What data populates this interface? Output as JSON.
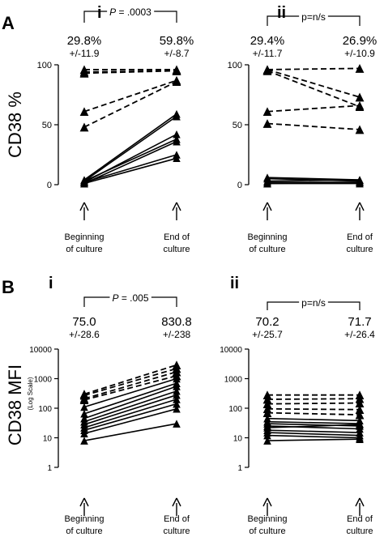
{
  "chart_data": [
    {
      "panel": "A",
      "subpanel": "i",
      "type": "line",
      "scale": "linear",
      "ylabel": "CD38 %",
      "ylim": [
        0,
        100
      ],
      "yticks": [
        "0",
        "50",
        "100"
      ],
      "x_labels": [
        [
          "Beginning",
          "of culture"
        ],
        [
          "End of",
          "culture"
        ]
      ],
      "pvalue": {
        "prefix": "P",
        "text": " = .0003"
      },
      "stats": [
        {
          "mean": "29.8%",
          "sd": "+/-11.9"
        },
        {
          "mean": "59.8%",
          "sd": "+/-8.7"
        }
      ],
      "series": [
        {
          "style": "dashed",
          "values": [
            96,
            96
          ]
        },
        {
          "style": "dashed",
          "values": [
            94,
            95
          ]
        },
        {
          "style": "dashed",
          "values": [
            93,
            95
          ]
        },
        {
          "style": "dashed",
          "values": [
            61,
            87
          ]
        },
        {
          "style": "dashed",
          "values": [
            48,
            86
          ]
        },
        {
          "style": "solid",
          "values": [
            4,
            59
          ]
        },
        {
          "style": "solid",
          "values": [
            3,
            57
          ]
        },
        {
          "style": "solid",
          "values": [
            2,
            42
          ]
        },
        {
          "style": "solid",
          "values": [
            3,
            38
          ]
        },
        {
          "style": "solid",
          "values": [
            1,
            36
          ]
        },
        {
          "style": "solid",
          "values": [
            2,
            25
          ]
        },
        {
          "style": "solid",
          "values": [
            1,
            22
          ]
        }
      ]
    },
    {
      "panel": "A",
      "subpanel": "ii",
      "type": "line",
      "scale": "linear",
      "ylim": [
        0,
        100
      ],
      "yticks": [
        "0",
        "50",
        "100"
      ],
      "x_labels": [
        [
          "Beginning",
          "of culture"
        ],
        [
          "End of",
          "culture"
        ]
      ],
      "pvalue": {
        "prefix": "",
        "text": "p=n/s"
      },
      "stats": [
        {
          "mean": "29.4%",
          "sd": "+/-11.7"
        },
        {
          "mean": "26.9%",
          "sd": "+/-10.9"
        }
      ],
      "series": [
        {
          "style": "dashed",
          "values": [
            96,
            97
          ]
        },
        {
          "style": "dashed",
          "values": [
            96,
            73
          ]
        },
        {
          "style": "dashed",
          "values": [
            95,
            65
          ]
        },
        {
          "style": "dashed",
          "values": [
            61,
            66
          ]
        },
        {
          "style": "dashed",
          "values": [
            51,
            46
          ]
        },
        {
          "style": "solid",
          "values": [
            6,
            4
          ]
        },
        {
          "style": "solid",
          "values": [
            5,
            3
          ]
        },
        {
          "style": "solid",
          "values": [
            3,
            4
          ]
        },
        {
          "style": "solid",
          "values": [
            2,
            2
          ]
        },
        {
          "style": "solid",
          "values": [
            1,
            2
          ]
        },
        {
          "style": "solid",
          "values": [
            1,
            1
          ]
        }
      ]
    },
    {
      "panel": "B",
      "subpanel": "i",
      "type": "line",
      "scale": "log",
      "ylabel": "CD38 MFI",
      "ylabel_sub": "(Log Scale)",
      "ylim": [
        1,
        10000
      ],
      "yticks": [
        "1",
        "10",
        "100",
        "1000",
        "10000"
      ],
      "x_labels": [
        [
          "Beginning",
          "of culture"
        ],
        [
          "End of",
          "culture"
        ]
      ],
      "pvalue": {
        "prefix": "P",
        "text": " = .005"
      },
      "stats": [
        {
          "mean": "75.0",
          "sd": "+/-28.6"
        },
        {
          "mean": "830.8",
          "sd": "+/-238"
        }
      ],
      "series": [
        {
          "style": "dashed",
          "values": [
            300,
            2900
          ]
        },
        {
          "style": "dashed",
          "values": [
            270,
            2200
          ]
        },
        {
          "style": "dashed",
          "values": [
            210,
            1700
          ]
        },
        {
          "style": "dashed",
          "values": [
            190,
            1250
          ]
        },
        {
          "style": "solid",
          "values": [
            110,
            1000
          ]
        },
        {
          "style": "solid",
          "values": [
            65,
            700
          ]
        },
        {
          "style": "solid",
          "values": [
            45,
            550
          ]
        },
        {
          "style": "solid",
          "values": [
            35,
            380
          ]
        },
        {
          "style": "solid",
          "values": [
            28,
            280
          ]
        },
        {
          "style": "solid",
          "values": [
            22,
            200
          ]
        },
        {
          "style": "solid",
          "values": [
            18,
            140
          ]
        },
        {
          "style": "solid",
          "values": [
            14,
            95
          ]
        },
        {
          "style": "solid",
          "values": [
            8,
            30
          ]
        }
      ]
    },
    {
      "panel": "B",
      "subpanel": "ii",
      "type": "line",
      "scale": "log",
      "ylim": [
        1,
        10000
      ],
      "yticks": [
        "1",
        "10",
        "100",
        "1000",
        "10000"
      ],
      "x_labels": [
        [
          "Beginning",
          "of culture"
        ],
        [
          "End of",
          "culture"
        ]
      ],
      "pvalue": {
        "prefix": "",
        "text": "p=n/s"
      },
      "stats": [
        {
          "mean": "70.2",
          "sd": "+/-25.7"
        },
        {
          "mean": "71.7",
          "sd": "+/-26.4"
        }
      ],
      "series": [
        {
          "style": "dashed",
          "values": [
            280,
            280
          ]
        },
        {
          "style": "dashed",
          "values": [
            200,
            210
          ]
        },
        {
          "style": "dashed",
          "values": [
            140,
            150
          ]
        },
        {
          "style": "dashed",
          "values": [
            95,
            90
          ]
        },
        {
          "style": "dashed",
          "values": [
            70,
            60
          ]
        },
        {
          "style": "solid",
          "values": [
            45,
            38
          ]
        },
        {
          "style": "solid",
          "values": [
            35,
            30
          ]
        },
        {
          "style": "solid",
          "values": [
            30,
            25
          ]
        },
        {
          "style": "solid",
          "values": [
            25,
            20
          ]
        },
        {
          "style": "solid",
          "values": [
            22,
            28
          ]
        },
        {
          "style": "solid",
          "values": [
            18,
            15
          ]
        },
        {
          "style": "solid",
          "values": [
            15,
            12
          ]
        },
        {
          "style": "solid",
          "values": [
            12,
            10
          ]
        },
        {
          "style": "solid",
          "values": [
            8,
            9
          ]
        }
      ]
    }
  ],
  "panel_labels": [
    "A",
    "B"
  ]
}
